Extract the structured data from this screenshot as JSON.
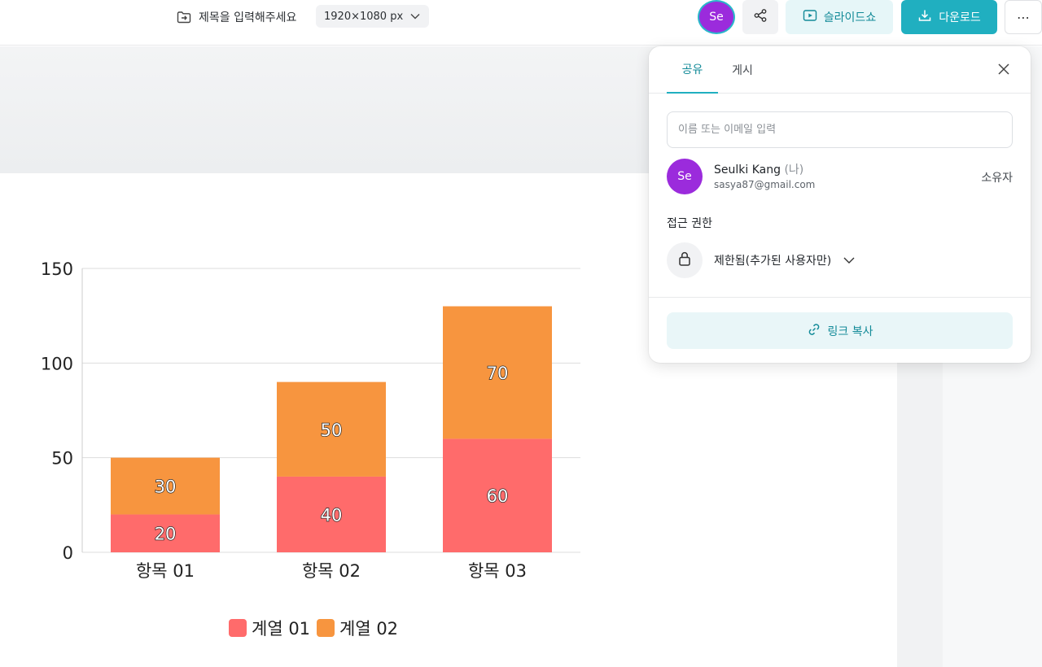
{
  "header": {
    "doc_title_placeholder": "제목을 입력해주세요",
    "canvas_size": "1920×1080 px",
    "avatar_initials": "Se",
    "slideshow_label": "슬라이드쇼",
    "download_label": "다운로드",
    "more_label": "⋯"
  },
  "share_panel": {
    "tabs": [
      {
        "label": "공유"
      },
      {
        "label": "게시"
      }
    ],
    "active_tab": "공유",
    "input_placeholder": "이름 또는 이메일 입력",
    "member": {
      "initials": "Se",
      "name": "Seulki Kang",
      "me_tag": "(나)",
      "email": "sasya87@gmail.com",
      "role": "소유자"
    },
    "access_label": "접근 권한",
    "access_value": "제한됨(추가된 사용자만)",
    "copy_link_label": "링크 복사"
  },
  "colors": {
    "accent": "#20afc0",
    "avatar": "#9b2bdc",
    "series1": "#ff6b6b",
    "series2": "#f7953f"
  },
  "chart_data": {
    "type": "bar",
    "stacked": true,
    "categories": [
      "항목 01",
      "항목 02",
      "항목 03"
    ],
    "series": [
      {
        "name": "계열 01",
        "values": [
          20,
          40,
          60
        ]
      },
      {
        "name": "계열 02",
        "values": [
          30,
          50,
          70
        ]
      }
    ],
    "ylim": [
      0,
      150
    ],
    "yticks": [
      0,
      50,
      100,
      150
    ],
    "grid": true,
    "legend": "bottom"
  }
}
